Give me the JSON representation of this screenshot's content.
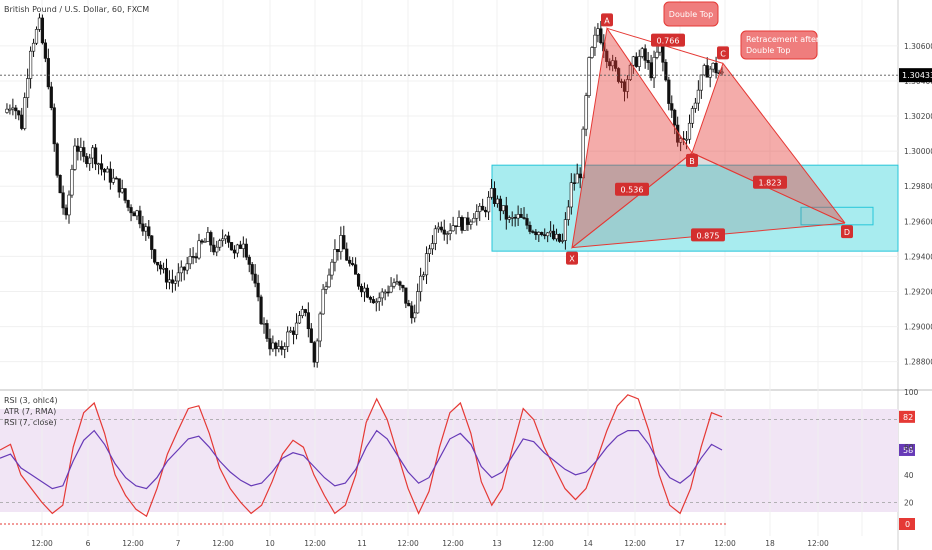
{
  "title": "British Pound / U.S. Dollar, 60, FXCM",
  "price_label": "1.30433",
  "chart_data": [
    {
      "type": "candlestick",
      "title": "British Pound / U.S. Dollar, 60, FXCM",
      "ylim": [
        1.2865,
        1.3085
      ],
      "y_ticks": [
        "1.30600",
        "1.30400",
        "1.30200",
        "1.30000",
        "1.29800",
        "1.29600",
        "1.29400",
        "1.29200",
        "1.29000",
        "1.28800"
      ],
      "x_ticks": [
        "12:00",
        "6",
        "12:00",
        "7",
        "12:00",
        "10",
        "12:00",
        "11",
        "12:00",
        "12:00",
        "13",
        "12:00",
        "14",
        "12:00",
        "17",
        "12:00",
        "18",
        "12:00"
      ],
      "close_path": [
        1.3022,
        1.3028,
        1.3015,
        1.306,
        1.3072,
        1.304,
        1.2985,
        1.296,
        1.3005,
        1.2995,
        1.3,
        1.299,
        1.2985,
        1.298,
        1.2968,
        1.2965,
        1.2955,
        1.294,
        1.293,
        1.2925,
        1.293,
        1.2938,
        1.2945,
        1.295,
        1.2942,
        1.2955,
        1.294,
        1.295,
        1.293,
        1.2905,
        1.289,
        1.2885,
        1.2895,
        1.29,
        1.291,
        1.288,
        1.292,
        1.294,
        1.2948,
        1.2935,
        1.2925,
        1.292,
        1.2915,
        1.292,
        1.2925,
        1.292,
        1.2905,
        1.2925,
        1.2945,
        1.296,
        1.2955,
        1.296,
        1.2958,
        1.2965,
        1.2965,
        1.2975,
        1.2968,
        1.296,
        1.2962,
        1.2958,
        1.2955,
        1.2955,
        1.295,
        1.2948,
        1.298,
        1.2988,
        1.305,
        1.307,
        1.3055,
        1.3045,
        1.3038,
        1.305,
        1.3055,
        1.3045,
        1.306,
        1.303,
        1.3005,
        1.301,
        1.303,
        1.3045,
        1.3048,
        1.3043
      ],
      "price_line": 1.30433,
      "last_price": "1.30433",
      "pattern": {
        "points": [
          {
            "label": "X",
            "x": 572,
            "y": 1.2945
          },
          {
            "label": "A",
            "x": 607,
            "y": 1.307
          },
          {
            "label": "B",
            "x": 692,
            "y": 1.2999
          },
          {
            "label": "C",
            "x": 723,
            "y": 1.305
          },
          {
            "label": "D",
            "x": 845,
            "y": 1.2959
          }
        ],
        "ratios": [
          "0.536",
          "0.766",
          "1.823",
          "0.875"
        ]
      },
      "annotations": [
        "Double Top",
        "Retracement after Double Top"
      ]
    },
    {
      "type": "line",
      "title": "RSI (3, ohlc4)",
      "ylim": [
        0,
        100
      ],
      "y_ticks": [
        "100",
        "80",
        "60",
        "40",
        "20",
        "0"
      ],
      "legend": [
        "RSI (3, ohlc4)",
        "ATR (7, RMA)",
        "RSI (7, close)"
      ],
      "series": [
        {
          "name": "RSI (3, ohlc4)",
          "color": "#e53935",
          "values": [
            58,
            62,
            40,
            30,
            20,
            12,
            18,
            60,
            85,
            92,
            70,
            40,
            25,
            15,
            10,
            30,
            55,
            72,
            88,
            90,
            70,
            45,
            30,
            20,
            12,
            18,
            35,
            55,
            65,
            60,
            40,
            25,
            12,
            18,
            40,
            78,
            95,
            80,
            55,
            30,
            12,
            28,
            60,
            85,
            92,
            70,
            35,
            18,
            30,
            60,
            88,
            80,
            60,
            45,
            30,
            22,
            30,
            50,
            72,
            90,
            98,
            95,
            72,
            40,
            18,
            12,
            30,
            60,
            85,
            82
          ]
        },
        {
          "name": "RSI (7, close)",
          "color": "#673ab7",
          "values": [
            52,
            55,
            45,
            40,
            35,
            30,
            32,
            50,
            65,
            72,
            62,
            48,
            38,
            32,
            30,
            38,
            50,
            58,
            66,
            68,
            60,
            50,
            42,
            36,
            32,
            34,
            42,
            52,
            56,
            54,
            46,
            38,
            32,
            34,
            44,
            60,
            72,
            66,
            54,
            42,
            34,
            38,
            52,
            66,
            70,
            62,
            46,
            38,
            42,
            54,
            66,
            64,
            56,
            50,
            44,
            40,
            42,
            50,
            60,
            68,
            72,
            72,
            62,
            48,
            38,
            34,
            40,
            52,
            62,
            58
          ]
        }
      ],
      "ylabels": [
        "82",
        "58",
        "0"
      ]
    }
  ]
}
